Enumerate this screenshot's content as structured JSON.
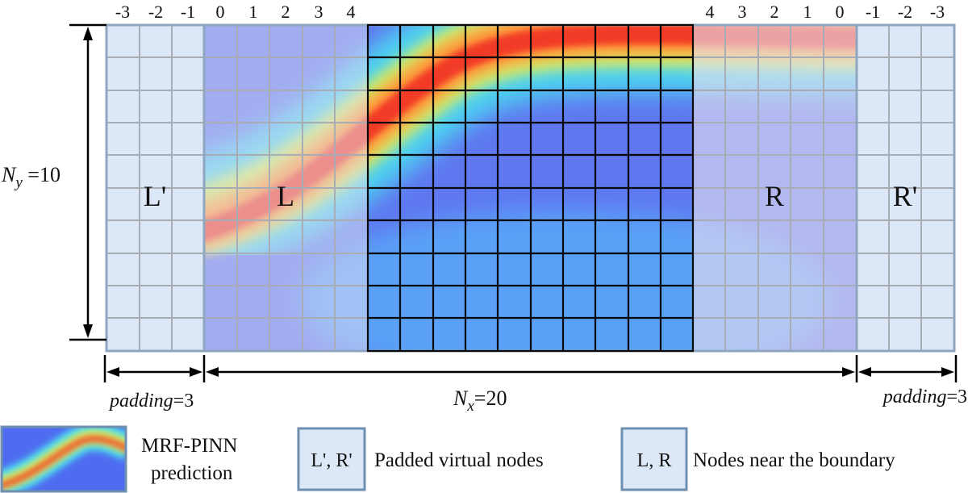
{
  "top_indices_left": [
    "-3",
    "-2",
    "-1",
    "0",
    "1",
    "2",
    "3",
    "4"
  ],
  "top_indices_right": [
    "4",
    "3",
    "2",
    "1",
    "0",
    "-1",
    "-2",
    "-3"
  ],
  "regions": {
    "left_padded": "L'",
    "left_boundary": "L",
    "right_boundary": "R",
    "right_padded": "R'"
  },
  "dimensions": {
    "ny_symbol": "N",
    "ny_subscript": "y",
    "ny_value": " =10",
    "nx_symbol": "N",
    "nx_subscript": "x",
    "nx_value": "=20",
    "padding_left_word": "padding",
    "padding_left_value": "=3",
    "padding_right_word": "padding",
    "padding_right_value": "=3"
  },
  "legend": {
    "prediction_line1": "MRF-PINN",
    "prediction_line2": "prediction",
    "padded_box_label": "L', R'",
    "padded_text": "Padded virtual nodes",
    "boundary_box_label": "L, R",
    "boundary_text": "Nodes near the boundary"
  },
  "colors": {
    "padded_fill": "#dce8f8",
    "cell_border_light": "#9aa0a8",
    "cell_border_dark": "#0a0a0a",
    "legend_box_border": "#6f8fb0",
    "outer_border": "#8fa6c0"
  }
}
